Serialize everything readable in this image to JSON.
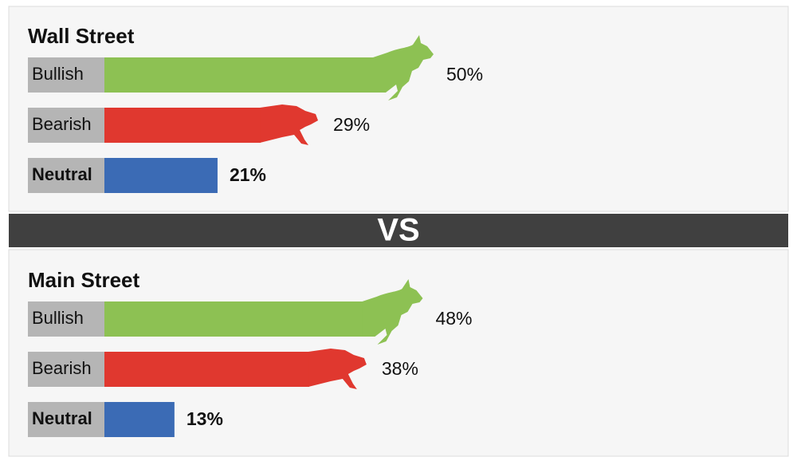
{
  "separator": "VS",
  "chart_data": [
    {
      "type": "bar",
      "title": "Wall Street",
      "categories": [
        "Bullish",
        "Bearish",
        "Neutral"
      ],
      "values": [
        50,
        29,
        21
      ],
      "value_labels": [
        "50%",
        "29%",
        "21%"
      ],
      "colors": [
        "#8dc153",
        "#e0382f",
        "#3b6bb5"
      ]
    },
    {
      "type": "bar",
      "title": "Main Street",
      "categories": [
        "Bullish",
        "Bearish",
        "Neutral"
      ],
      "values": [
        48,
        38,
        13
      ],
      "value_labels": [
        "48%",
        "38%",
        "13%"
      ],
      "colors": [
        "#8dc153",
        "#e0382f",
        "#3b6bb5"
      ]
    }
  ]
}
